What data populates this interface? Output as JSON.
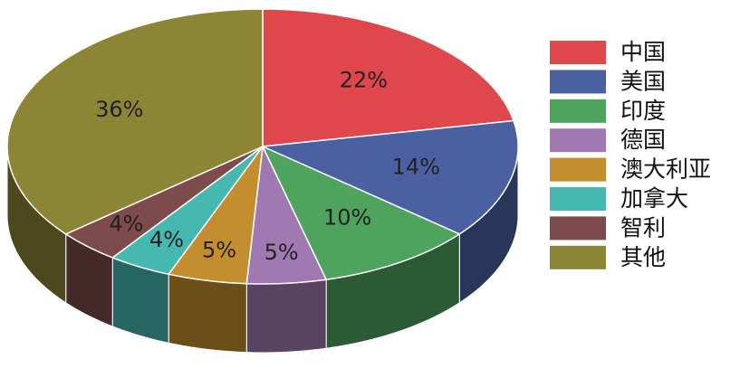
{
  "chart_data": {
    "type": "pie",
    "style": "3d",
    "categories": [
      "中国",
      "美国",
      "印度",
      "德国",
      "澳大利亚",
      "加拿大",
      "智利",
      "其他"
    ],
    "values": [
      22,
      14,
      10,
      5,
      5,
      4,
      4,
      36
    ],
    "value_labels": [
      "22%",
      "14%",
      "10%",
      "5%",
      "5%",
      "4%",
      "4%",
      "36%"
    ],
    "colors": [
      "#e0474c",
      "#4a60a1",
      "#4ea35e",
      "#a079b2",
      "#c48e2e",
      "#45b8b0",
      "#7d4b4b",
      "#8c8536"
    ],
    "legend": "right"
  }
}
